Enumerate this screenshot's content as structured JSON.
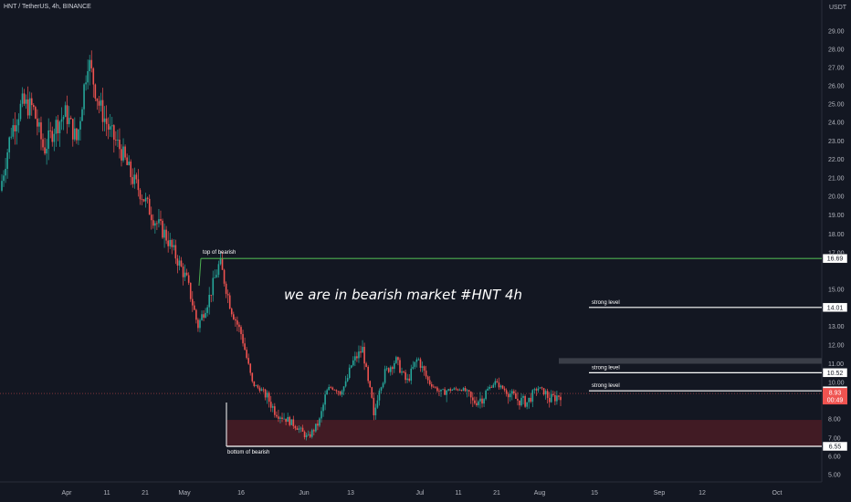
{
  "header": {
    "title": "HNT / TetherUS, 4h, BINANCE",
    "currency": "USDT"
  },
  "chart_data": {
    "type": "candlestick",
    "symbol": "HNT / TetherUS",
    "interval": "4h",
    "exchange": "BINANCE",
    "headline": "we are in bearish market  #HNT  4h",
    "y_ticks": [
      "29.00",
      "28.00",
      "27.00",
      "26.00",
      "25.00",
      "24.00",
      "23.00",
      "22.00",
      "21.00",
      "20.00",
      "19.00",
      "18.00",
      "17.00",
      "15.00",
      "14.00",
      "13.00",
      "12.00",
      "11.00",
      "10.00",
      "9.00",
      "8.00",
      "7.00",
      "6.00",
      "5.00"
    ],
    "x_ticks": [
      "Apr",
      "11",
      "21",
      "May",
      "16",
      "Jun",
      "13",
      "Jul",
      "11",
      "21",
      "Aug",
      "15",
      "Sep",
      "12",
      "Oct"
    ],
    "ylim": [
      5,
      29
    ],
    "price_path": [
      {
        "t": 0,
        "v": 20.3
      },
      {
        "t": 1,
        "v": 23.5
      },
      {
        "t": 2,
        "v": 25.0
      },
      {
        "t": 3,
        "v": 24.8
      },
      {
        "t": 4,
        "v": 22.5
      },
      {
        "t": 5,
        "v": 23.8
      },
      {
        "t": 6,
        "v": 24.5
      },
      {
        "t": 7,
        "v": 23.0
      },
      {
        "t": 8,
        "v": 27.5
      },
      {
        "t": 9,
        "v": 25.0
      },
      {
        "t": 10,
        "v": 23.5
      },
      {
        "t": 11,
        "v": 22.5
      },
      {
        "t": 12,
        "v": 21.0
      },
      {
        "t": 13,
        "v": 20.0
      },
      {
        "t": 14,
        "v": 18.8
      },
      {
        "t": 15,
        "v": 18.0
      },
      {
        "t": 16,
        "v": 16.8
      },
      {
        "t": 17,
        "v": 15.5
      },
      {
        "t": 18,
        "v": 13.0
      },
      {
        "t": 19,
        "v": 14.5
      },
      {
        "t": 20,
        "v": 16.5
      },
      {
        "t": 21,
        "v": 14.0
      },
      {
        "t": 22,
        "v": 12.5
      },
      {
        "t": 23,
        "v": 9.8
      },
      {
        "t": 24,
        "v": 9.0
      },
      {
        "t": 25,
        "v": 8.3
      },
      {
        "t": 26,
        "v": 8.0
      },
      {
        "t": 27,
        "v": 7.6
      },
      {
        "t": 28,
        "v": 7.0
      },
      {
        "t": 29,
        "v": 7.8
      },
      {
        "t": 30,
        "v": 9.5
      },
      {
        "t": 31,
        "v": 9.0
      },
      {
        "t": 32,
        "v": 11.0
      },
      {
        "t": 33,
        "v": 11.8
      },
      {
        "t": 34,
        "v": 8.0
      },
      {
        "t": 35,
        "v": 10.5
      },
      {
        "t": 36,
        "v": 11.2
      },
      {
        "t": 37,
        "v": 10.0
      },
      {
        "t": 38,
        "v": 11.3
      },
      {
        "t": 39,
        "v": 10.0
      },
      {
        "t": 40,
        "v": 9.0
      },
      {
        "t": 41,
        "v": 9.2
      },
      {
        "t": 42,
        "v": 9.3
      },
      {
        "t": 43,
        "v": 8.6
      },
      {
        "t": 44,
        "v": 8.8
      },
      {
        "t": 45,
        "v": 10.0
      },
      {
        "t": 46,
        "v": 9.1
      },
      {
        "t": 47,
        "v": 8.7
      },
      {
        "t": 48,
        "v": 8.6
      },
      {
        "t": 49,
        "v": 9.4
      },
      {
        "t": 50,
        "v": 8.7
      },
      {
        "t": 51,
        "v": 8.9
      }
    ],
    "levels": [
      {
        "name": "top of bearish",
        "value": 16.69,
        "color": "#4caf50"
      },
      {
        "name": "strong level",
        "value": 14.01,
        "color": "#ffffff"
      },
      {
        "name": "strong level",
        "value": 10.52,
        "color": "#ffffff"
      },
      {
        "name": "strong level",
        "value": 9.08,
        "color": "#ffffff"
      },
      {
        "name": "bottom of bearish",
        "value": 6.55,
        "color": "#ffffff"
      }
    ],
    "current_price": "8.93",
    "countdown": "00:49",
    "support_zone": [
      6.55,
      7.95
    ],
    "resistance_zone": [
      11.0,
      11.3
    ],
    "colors": {
      "up": "#26a69a",
      "down": "#ef5350",
      "background": "#131722"
    }
  }
}
